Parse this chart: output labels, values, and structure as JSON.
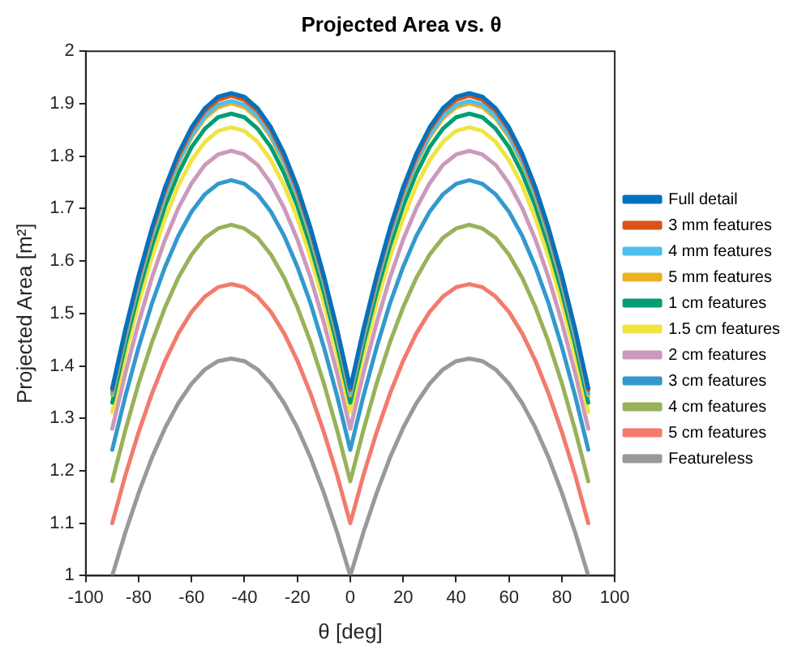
{
  "chart_data": {
    "type": "line",
    "title": "Projected Area vs. θ",
    "xlabel": "θ [deg]",
    "ylabel": "Projected Area [m²]",
    "x": [
      -90,
      -85,
      -80,
      -75,
      -70,
      -65,
      -60,
      -55,
      -50,
      -45,
      -40,
      -35,
      -30,
      -25,
      -20,
      -15,
      -10,
      -5,
      0,
      5,
      10,
      15,
      20,
      25,
      30,
      35,
      40,
      45,
      50,
      55,
      60,
      65,
      70,
      75,
      80,
      85,
      90
    ],
    "xlim": [
      -100,
      100
    ],
    "xticks": [
      -100,
      -80,
      -60,
      -40,
      -20,
      0,
      20,
      40,
      60,
      80,
      100
    ],
    "ylim": [
      1,
      2
    ],
    "yticks": [
      1,
      1.1,
      1.2,
      1.3,
      1.4,
      1.5,
      1.6,
      1.7,
      1.8,
      1.9,
      2
    ],
    "grid": false,
    "legend": "right",
    "marker": "none",
    "line_style": "solid",
    "series": [
      {
        "name": "Full detail",
        "color": "#0072bd",
        "values": [
          1.358,
          1.471,
          1.573,
          1.663,
          1.741,
          1.805,
          1.855,
          1.891,
          1.913,
          1.92,
          1.913,
          1.891,
          1.855,
          1.805,
          1.741,
          1.663,
          1.573,
          1.471,
          1.358,
          1.471,
          1.573,
          1.663,
          1.741,
          1.805,
          1.855,
          1.891,
          1.913,
          1.92,
          1.913,
          1.891,
          1.855,
          1.805,
          1.741,
          1.663,
          1.573,
          1.471,
          1.358
        ]
      },
      {
        "name": "3 mm features",
        "color": "#d95319",
        "values": [
          1.354,
          1.467,
          1.568,
          1.658,
          1.735,
          1.799,
          1.85,
          1.886,
          1.907,
          1.915,
          1.907,
          1.886,
          1.85,
          1.799,
          1.735,
          1.658,
          1.568,
          1.467,
          1.354,
          1.467,
          1.568,
          1.658,
          1.735,
          1.799,
          1.85,
          1.886,
          1.907,
          1.915,
          1.907,
          1.886,
          1.85,
          1.799,
          1.735,
          1.658,
          1.568,
          1.467,
          1.354
        ]
      },
      {
        "name": "4 mm features",
        "color": "#4dbeee",
        "values": [
          1.347,
          1.459,
          1.56,
          1.65,
          1.726,
          1.79,
          1.84,
          1.876,
          1.898,
          1.905,
          1.898,
          1.876,
          1.84,
          1.79,
          1.726,
          1.65,
          1.56,
          1.459,
          1.347,
          1.459,
          1.56,
          1.65,
          1.726,
          1.79,
          1.84,
          1.876,
          1.898,
          1.905,
          1.898,
          1.876,
          1.84,
          1.79,
          1.726,
          1.65,
          1.56,
          1.459,
          1.347
        ]
      },
      {
        "name": "5 mm features",
        "color": "#edb120",
        "values": [
          1.344,
          1.456,
          1.557,
          1.646,
          1.723,
          1.786,
          1.836,
          1.872,
          1.893,
          1.901,
          1.893,
          1.872,
          1.836,
          1.786,
          1.723,
          1.646,
          1.557,
          1.456,
          1.344,
          1.456,
          1.557,
          1.646,
          1.723,
          1.786,
          1.836,
          1.872,
          1.893,
          1.901,
          1.893,
          1.872,
          1.836,
          1.786,
          1.723,
          1.646,
          1.557,
          1.456,
          1.344
        ]
      },
      {
        "name": "1 cm features",
        "color": "#009e73",
        "values": [
          1.33,
          1.441,
          1.541,
          1.629,
          1.705,
          1.767,
          1.817,
          1.852,
          1.874,
          1.881,
          1.874,
          1.852,
          1.817,
          1.767,
          1.705,
          1.629,
          1.541,
          1.441,
          1.33,
          1.441,
          1.541,
          1.629,
          1.705,
          1.767,
          1.817,
          1.852,
          1.874,
          1.881,
          1.874,
          1.852,
          1.817,
          1.767,
          1.705,
          1.629,
          1.541,
          1.441,
          1.33
        ]
      },
      {
        "name": "1.5 cm features",
        "color": "#f0e442",
        "values": [
          1.312,
          1.421,
          1.52,
          1.607,
          1.682,
          1.744,
          1.792,
          1.827,
          1.848,
          1.855,
          1.848,
          1.827,
          1.792,
          1.744,
          1.682,
          1.607,
          1.52,
          1.421,
          1.312,
          1.421,
          1.52,
          1.607,
          1.682,
          1.744,
          1.792,
          1.827,
          1.848,
          1.855,
          1.848,
          1.827,
          1.792,
          1.744,
          1.682,
          1.607,
          1.52,
          1.421,
          1.312
        ]
      },
      {
        "name": "2 cm features",
        "color": "#cc99bb",
        "values": [
          1.28,
          1.387,
          1.483,
          1.568,
          1.641,
          1.701,
          1.748,
          1.783,
          1.803,
          1.81,
          1.803,
          1.783,
          1.748,
          1.701,
          1.641,
          1.568,
          1.483,
          1.387,
          1.28,
          1.387,
          1.483,
          1.568,
          1.641,
          1.701,
          1.748,
          1.783,
          1.803,
          1.81,
          1.803,
          1.783,
          1.748,
          1.701,
          1.641,
          1.568,
          1.483,
          1.387,
          1.28
        ]
      },
      {
        "name": "3 cm features",
        "color": "#3399cc",
        "values": [
          1.24,
          1.343,
          1.436,
          1.519,
          1.589,
          1.648,
          1.694,
          1.727,
          1.747,
          1.754,
          1.747,
          1.727,
          1.694,
          1.648,
          1.589,
          1.519,
          1.436,
          1.343,
          1.24,
          1.343,
          1.436,
          1.519,
          1.589,
          1.648,
          1.694,
          1.727,
          1.747,
          1.754,
          1.747,
          1.727,
          1.694,
          1.648,
          1.589,
          1.519,
          1.436,
          1.343,
          1.24
        ]
      },
      {
        "name": "4 cm features",
        "color": "#99b25a",
        "values": [
          1.18,
          1.278,
          1.367,
          1.445,
          1.512,
          1.568,
          1.612,
          1.644,
          1.662,
          1.669,
          1.662,
          1.644,
          1.612,
          1.568,
          1.512,
          1.445,
          1.367,
          1.278,
          1.18,
          1.278,
          1.367,
          1.445,
          1.512,
          1.568,
          1.612,
          1.644,
          1.662,
          1.669,
          1.662,
          1.644,
          1.612,
          1.568,
          1.512,
          1.445,
          1.367,
          1.278,
          1.18
        ]
      },
      {
        "name": "5 cm features",
        "color": "#f27b6d",
        "values": [
          1.1,
          1.192,
          1.274,
          1.347,
          1.41,
          1.462,
          1.503,
          1.532,
          1.55,
          1.556,
          1.55,
          1.532,
          1.503,
          1.462,
          1.41,
          1.347,
          1.274,
          1.192,
          1.1,
          1.192,
          1.274,
          1.347,
          1.41,
          1.462,
          1.503,
          1.532,
          1.55,
          1.556,
          1.55,
          1.532,
          1.503,
          1.462,
          1.41,
          1.347,
          1.274,
          1.192,
          1.1
        ]
      },
      {
        "name": "Featureless",
        "color": "#999999",
        "values": [
          1.0,
          1.083,
          1.158,
          1.225,
          1.282,
          1.329,
          1.366,
          1.393,
          1.409,
          1.414,
          1.409,
          1.393,
          1.366,
          1.329,
          1.282,
          1.225,
          1.158,
          1.083,
          1.0,
          1.083,
          1.158,
          1.225,
          1.282,
          1.329,
          1.366,
          1.393,
          1.409,
          1.414,
          1.409,
          1.393,
          1.366,
          1.329,
          1.282,
          1.225,
          1.158,
          1.083,
          1.0
        ]
      }
    ]
  }
}
